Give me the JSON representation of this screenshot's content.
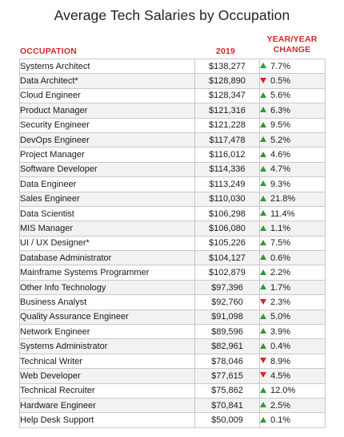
{
  "title": "Average Tech Salaries by Occupation",
  "headers": {
    "occupation": "OCCUPATION",
    "year": "2019",
    "change_line1": "YEAR/YEAR",
    "change_line2": "CHANGE"
  },
  "colors": {
    "header": "#d7262b",
    "up": "#2e9a36",
    "down": "#d7262b",
    "stripe": "#f2f2f2"
  },
  "chart_data": {
    "type": "table",
    "title": "Average Tech Salaries by Occupation",
    "columns": [
      "OCCUPATION",
      "2019",
      "YEAR/YEAR CHANGE"
    ],
    "rows": [
      {
        "occupation": "Systems Architect",
        "salary": "$138,277",
        "change": "7.7%",
        "direction": "up"
      },
      {
        "occupation": "Data Architect*",
        "salary": "$128,890",
        "change": "0.5%",
        "direction": "down"
      },
      {
        "occupation": "Cloud Engineer",
        "salary": "$128,347",
        "change": "5.6%",
        "direction": "up"
      },
      {
        "occupation": "Product Manager",
        "salary": "$121,316",
        "change": "6.3%",
        "direction": "up"
      },
      {
        "occupation": "Security Engineer",
        "salary": "$121,228",
        "change": "9.5%",
        "direction": "up"
      },
      {
        "occupation": "DevOps Engineer",
        "salary": "$117,478",
        "change": "5.2%",
        "direction": "up"
      },
      {
        "occupation": "Project Manager",
        "salary": "$116,012",
        "change": "4.6%",
        "direction": "up"
      },
      {
        "occupation": "Software Developer",
        "salary": "$114,336",
        "change": "4.7%",
        "direction": "up"
      },
      {
        "occupation": "Data Engineer",
        "salary": "$113,249",
        "change": "9.3%",
        "direction": "up"
      },
      {
        "occupation": "Sales Engineer",
        "salary": "$110,030",
        "change": "21.8%",
        "direction": "up"
      },
      {
        "occupation": "Data Scientist",
        "salary": "$106,298",
        "change": "11.4%",
        "direction": "up"
      },
      {
        "occupation": "MIS Manager",
        "salary": "$106,080",
        "change": "1.1%",
        "direction": "up"
      },
      {
        "occupation": "UI / UX Designer*",
        "salary": "$105,226",
        "change": "7.5%",
        "direction": "up"
      },
      {
        "occupation": "Database Administrator",
        "salary": "$104,127",
        "change": "0.6%",
        "direction": "up"
      },
      {
        "occupation": "Mainframe Systems Programmer",
        "salary": "$102,879",
        "change": "2.2%",
        "direction": "up"
      },
      {
        "occupation": "Other Info Technology",
        "salary": "$97,396",
        "change": "1.7%",
        "direction": "up"
      },
      {
        "occupation": "Business Analyst",
        "salary": "$92,760",
        "change": "2.3%",
        "direction": "down"
      },
      {
        "occupation": "Quality Assurance Engineer",
        "salary": "$91,098",
        "change": "5.0%",
        "direction": "up"
      },
      {
        "occupation": "Network Engineer",
        "salary": "$89,596",
        "change": "3.9%",
        "direction": "up"
      },
      {
        "occupation": "Systems Administrator",
        "salary": "$82,961",
        "change": "0.4%",
        "direction": "up"
      },
      {
        "occupation": "Technical Writer",
        "salary": "$78,046",
        "change": "8.9%",
        "direction": "down"
      },
      {
        "occupation": "Web Developer",
        "salary": "$77,615",
        "change": "4.5%",
        "direction": "down"
      },
      {
        "occupation": "Technical Recruiter",
        "salary": "$75,862",
        "change": "12.0%",
        "direction": "up"
      },
      {
        "occupation": "Hardware Engineer",
        "salary": "$70,841",
        "change": "2.5%",
        "direction": "up"
      },
      {
        "occupation": "Help Desk Support",
        "salary": "$50,009",
        "change": "0.1%",
        "direction": "up"
      }
    ]
  }
}
